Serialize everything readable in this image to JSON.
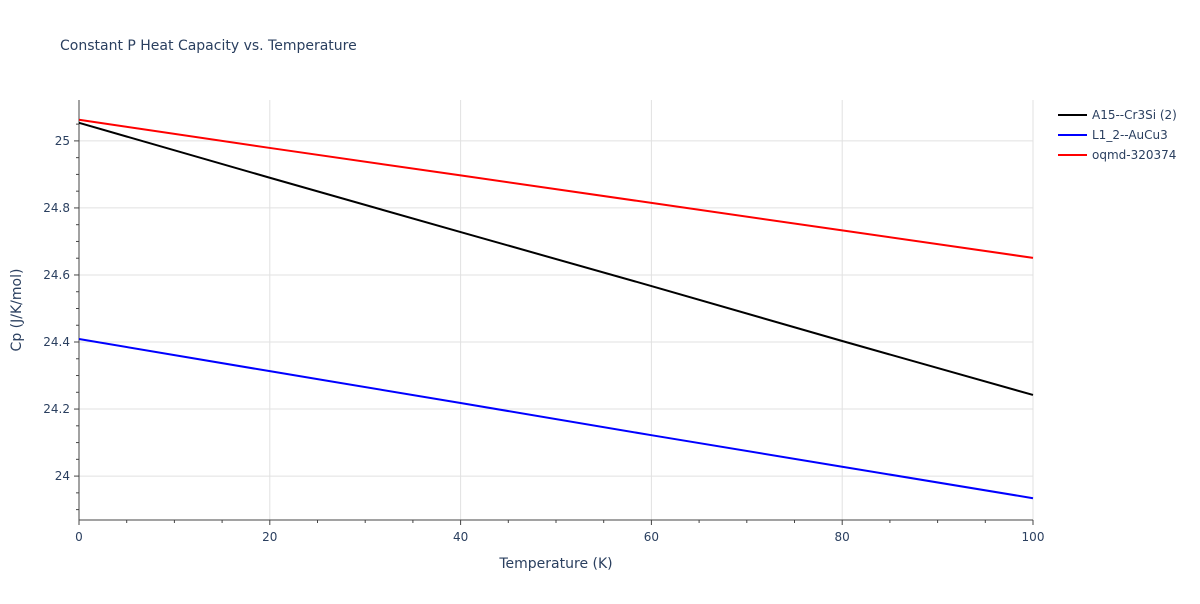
{
  "chart_data": {
    "type": "line",
    "title": "Constant P Heat Capacity vs. Temperature",
    "xlabel": "Temperature (K)",
    "ylabel": "Cp (J/K/mol)",
    "xlim": [
      0,
      100
    ],
    "ylim": [
      23.869,
      25.122
    ],
    "xticks": [
      0,
      20,
      40,
      60,
      80,
      100
    ],
    "yticks": [
      24,
      24.2,
      24.4,
      24.6,
      24.8,
      25
    ],
    "ytick_labels": [
      "24",
      "24.2",
      "24.4",
      "24.6",
      "24.8",
      "25"
    ],
    "grid": true,
    "legend_placement": "top-right, outside",
    "x": [
      0,
      20,
      40,
      60,
      80,
      100
    ],
    "series": [
      {
        "name": "A15--Cr3Si (2)",
        "color": "#000000",
        "values": [
          25.054,
          24.89,
          24.728,
          24.567,
          24.403,
          24.242
        ]
      },
      {
        "name": "L1_2--AuCu3",
        "color": "#0000ff",
        "values": [
          24.409,
          24.313,
          24.218,
          24.122,
          24.028,
          23.934
        ]
      },
      {
        "name": "oqmd-320374",
        "color": "#ff0000",
        "values": [
          25.063,
          24.979,
          24.897,
          24.815,
          24.733,
          24.651
        ]
      }
    ]
  }
}
